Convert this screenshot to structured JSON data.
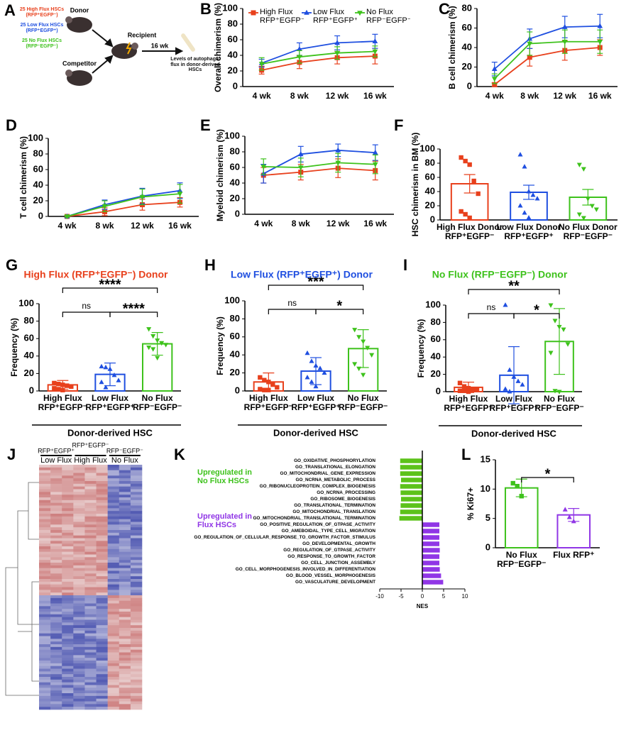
{
  "panels": {
    "A": "A",
    "J": "J"
  },
  "diagram": {
    "donor_groups": [
      "25 High Flux HSCs (RFP⁺EGFP⁻)",
      "25 Low Flux HSCs (RFP⁺EGFP⁺)",
      "25 No Flux HSCs (RFP⁻EGFP⁻)"
    ],
    "donor": "Donor",
    "recipient": "Recipient",
    "competitor": "Competitor",
    "duration": "16 wk",
    "outcome": "Levels of autophagic flux in donor-derived HSCs"
  },
  "heatmap": {
    "column_groups": [
      "RFP⁺EGFP⁺",
      "RFP⁺EGFP⁻",
      "RFP⁻EGFP⁻"
    ],
    "group_labels": [
      "Low Flux",
      "High Flux",
      "No Flux"
    ]
  },
  "chart_data": [
    {
      "type": "line",
      "panel": "B",
      "ylabel": "Overall chimerism (%)",
      "categories": [
        "4 wk",
        "8 wk",
        "12 wk",
        "16 wk"
      ],
      "ylim": [
        0,
        100
      ],
      "yticks": [
        0,
        20,
        40,
        60,
        80,
        100
      ],
      "legend": true,
      "series": [
        {
          "name": "High Flux RFP⁺EGFP⁻",
          "color": "#e8401c",
          "marker": "square",
          "values": [
            21,
            31,
            37,
            39
          ],
          "errors": [
            5,
            8,
            8,
            10
          ]
        },
        {
          "name": "Low Flux RFP⁺EGFP⁺",
          "color": "#1f4fe0",
          "marker": "triangle",
          "values": [
            30,
            48,
            56,
            58
          ],
          "errors": [
            5,
            8,
            9,
            9
          ]
        },
        {
          "name": "No Flux RFP⁻EGFP⁻",
          "color": "#3ec21c",
          "marker": "triangle-down",
          "values": [
            29,
            38,
            43,
            45
          ],
          "errors": [
            8,
            8,
            8,
            7
          ]
        }
      ]
    },
    {
      "type": "line",
      "panel": "C",
      "ylabel": "B cell chimerism (%)",
      "categories": [
        "4 wk",
        "8 wk",
        "12 wk",
        "16 wk"
      ],
      "ylim": [
        0,
        80
      ],
      "yticks": [
        0,
        20,
        40,
        60,
        80
      ],
      "series": [
        {
          "color": "#e8401c",
          "marker": "square",
          "values": [
            2,
            30,
            37,
            40
          ],
          "errors": [
            2,
            9,
            10,
            8
          ]
        },
        {
          "color": "#1f4fe0",
          "marker": "triangle",
          "values": [
            18,
            49,
            61,
            62
          ],
          "errors": [
            7,
            10,
            11,
            12
          ]
        },
        {
          "color": "#3ec21c",
          "marker": "triangle-down",
          "values": [
            8,
            44,
            46,
            46
          ],
          "errors": [
            5,
            12,
            12,
            12
          ]
        }
      ]
    },
    {
      "type": "line",
      "panel": "D",
      "ylabel": "T cell chimerism (%)",
      "categories": [
        "4 wk",
        "8 wk",
        "12 wk",
        "16 wk"
      ],
      "ylim": [
        0,
        100
      ],
      "yticks": [
        0,
        20,
        40,
        60,
        80,
        100
      ],
      "series": [
        {
          "color": "#e8401c",
          "marker": "square",
          "values": [
            0,
            6,
            15,
            18
          ],
          "errors": [
            1,
            5,
            7,
            6
          ]
        },
        {
          "color": "#1f4fe0",
          "marker": "triangle",
          "values": [
            0,
            15,
            26,
            33
          ],
          "errors": [
            1,
            6,
            10,
            10
          ]
        },
        {
          "color": "#3ec21c",
          "marker": "triangle-down",
          "values": [
            0,
            13,
            25,
            29
          ],
          "errors": [
            1,
            7,
            10,
            12
          ]
        }
      ]
    },
    {
      "type": "line",
      "panel": "E",
      "ylabel": "Myeloid chimerism (%)",
      "categories": [
        "4 wk",
        "8 wk",
        "12 wk",
        "16 wk"
      ],
      "ylim": [
        0,
        100
      ],
      "yticks": [
        0,
        20,
        40,
        60,
        80,
        100
      ],
      "series": [
        {
          "color": "#e8401c",
          "marker": "square",
          "values": [
            50,
            54,
            59,
            56
          ],
          "errors": [
            10,
            10,
            12,
            12
          ]
        },
        {
          "color": "#1f4fe0",
          "marker": "triangle",
          "values": [
            52,
            77,
            82,
            79
          ],
          "errors": [
            12,
            10,
            8,
            10
          ]
        },
        {
          "color": "#3ec21c",
          "marker": "triangle-down",
          "values": [
            61,
            60,
            66,
            64
          ],
          "errors": [
            10,
            12,
            12,
            12
          ]
        }
      ]
    },
    {
      "type": "bar",
      "panel": "F",
      "ylabel": "HSC chimerism in BM (%)",
      "categories": [
        "High Flux Donor RFP⁺EGFP⁻",
        "Low Flux Donor RFP⁺EGFP⁺",
        "No Flux Donor RFP⁻EGFP⁻"
      ],
      "colors": [
        "#e8401c",
        "#1f4fe0",
        "#3ec21c"
      ],
      "markers": [
        "square",
        "triangle",
        "triangle-down"
      ],
      "ylim": [
        0,
        100
      ],
      "yticks": [
        0,
        20,
        40,
        60,
        80,
        100
      ],
      "values": [
        51,
        39,
        32
      ],
      "errors": [
        13,
        10,
        11
      ],
      "points": [
        [
          88,
          83,
          78,
          55,
          37,
          12,
          8,
          3
        ],
        [
          92,
          75,
          40,
          35,
          30,
          20,
          10,
          3
        ],
        [
          78,
          72,
          30,
          20,
          15,
          8,
          3
        ]
      ]
    },
    {
      "type": "bar",
      "panel": "G",
      "title": "High Flux (RFP⁺EGFP⁻) Donor",
      "title_color": "#e8401c",
      "ylabel": "Frequency (%)",
      "xlabel": "Donor-derived HSC",
      "categories": [
        "High Flux RFP⁺EGFP⁻",
        "Low Flux RFP⁺EGFP⁺",
        "No Flux RFP⁻EGFP⁻"
      ],
      "colors": [
        "#e8401c",
        "#1f4fe0",
        "#3ec21c"
      ],
      "markers": [
        "square",
        "triangle",
        "triangle-down"
      ],
      "ylim": [
        0,
        100
      ],
      "yticks": [
        0,
        20,
        40,
        60,
        80,
        100
      ],
      "values": [
        7,
        19,
        54
      ],
      "errors": [
        5,
        13,
        13
      ],
      "points": [
        [
          9,
          8,
          7,
          6,
          5,
          3,
          2,
          1
        ],
        [
          28,
          27,
          25,
          18,
          12,
          10,
          4
        ],
        [
          71,
          63,
          58,
          55,
          53,
          50,
          48,
          38
        ]
      ],
      "significance": [
        "****",
        "ns",
        "****"
      ]
    },
    {
      "type": "bar",
      "panel": "H",
      "title": "Low Flux (RFP⁺EGFP⁺) Donor",
      "title_color": "#1f4fe0",
      "ylabel": "Frequency (%)",
      "xlabel": "Donor-derived HSC",
      "categories": [
        "High Flux RFP⁺EGFP⁻",
        "Low Flux RFP⁺EGFP⁺",
        "No Flux RFP⁻EGFP⁻"
      ],
      "colors": [
        "#e8401c",
        "#1f4fe0",
        "#3ec21c"
      ],
      "markers": [
        "square",
        "triangle",
        "triangle-down"
      ],
      "ylim": [
        0,
        100
      ],
      "yticks": [
        0,
        20,
        40,
        60,
        80,
        100
      ],
      "values": [
        10,
        22,
        47
      ],
      "errors": [
        10,
        15,
        21
      ],
      "points": [
        [
          15,
          12,
          10,
          7,
          4,
          2,
          1,
          1
        ],
        [
          42,
          33,
          28,
          25,
          20,
          15,
          10,
          5
        ],
        [
          68,
          60,
          55,
          48,
          40,
          30,
          25,
          18
        ]
      ],
      "significance": [
        "***",
        "ns",
        "*"
      ]
    },
    {
      "type": "bar",
      "panel": "I",
      "title": "No Flux (RFP⁻EGFP⁻) Donor",
      "title_color": "#3ec21c",
      "ylabel": "Frequency (%)",
      "xlabel": "Donor-derived HSC",
      "categories": [
        "High Flux RFP⁺EGFP⁻",
        "Low Flux RFP⁺EGFP⁺",
        "No Flux RFP⁻EGFP⁻"
      ],
      "colors": [
        "#e8401c",
        "#1f4fe0",
        "#3ec21c"
      ],
      "markers": [
        "square",
        "triangle",
        "triangle-down"
      ],
      "ylim": [
        0,
        100
      ],
      "yticks": [
        0,
        20,
        40,
        60,
        80,
        100
      ],
      "values": [
        5,
        19,
        58
      ],
      "errors": [
        6,
        33,
        38
      ],
      "points": [
        [
          10,
          6,
          4,
          3,
          2,
          1,
          1,
          0
        ],
        [
          100,
          25,
          17,
          12,
          8,
          3,
          0
        ],
        [
          100,
          82,
          75,
          72,
          55,
          45,
          1,
          0
        ]
      ],
      "significance": [
        "**",
        "ns",
        "*"
      ]
    },
    {
      "type": "hbar",
      "panel": "K",
      "xlabel": "NES",
      "xlim": [
        -10,
        10
      ],
      "xticks": [
        -10,
        -5,
        0,
        5,
        10
      ],
      "negative_color": "#5cc21a",
      "positive_color": "#9036e6",
      "annotations": [
        {
          "text": "Upregulated in No Flux HSCs",
          "color": "#3ec21c"
        },
        {
          "text": "Upregulated in Flux HSCs",
          "color": "#9036e6"
        }
      ],
      "categories": [
        "GO_OXIDATIVE_PHOSPHORYLATION",
        "GO_TRANSLATIONAL_ELONGATION",
        "GO_MITOCHONDRIAL_GENE_EXPRESSION",
        "GO_NCRNA_METABOLIC_PROCESS",
        "GO_RIBONUCLEOPROTEIN_COMPLEX_BIOGENESIS",
        "GO_NCRNA_PROCESSING",
        "GO_RIBOSOME_BIOGENESIS",
        "GO_TRANSLATIONAL_TERMINATION",
        "GO_MITOCHONDRIAL_TRANSLATION",
        "GO_MITOCHONDRIAL_TRANSLATIONAL_TERMINATION",
        "GO_POSITIVE_REGULATION_OF_GTPASE_ACTIVITY",
        "GO_AMEBOIDAL_TYPE_CELL_MIGRATION",
        "GO_REGULATION_OF_CELLULAR_RESPONSE_TO_GROWTH_FACTOR_STIMULUS",
        "GO_DEVELOPMENTAL_GROWTH",
        "GO_REGULATION_OF_GTPASE_ACTIVITY",
        "GO_RESPONSE_TO_GROWTH_FACTOR",
        "GO_CELL_JUNCTION_ASSEMBLY",
        "GO_CELL_MORPHOGENESIS_INVOLVED_IN_DIFFERENTIATION",
        "GO_BLOOD_VESSEL_MORPHOGENESIS",
        "GO_VASCULATURE_DEVELOPMENT"
      ],
      "values": [
        -5.2,
        -5.2,
        -5.2,
        -5.0,
        -5.2,
        -5.1,
        -5.0,
        -5.1,
        -5.2,
        -5.4,
        4.0,
        4.0,
        4.0,
        4.0,
        4.1,
        4.0,
        4.0,
        4.1,
        4.4,
        4.9
      ]
    },
    {
      "type": "bar",
      "panel": "L",
      "ylabel": "% Ki67+",
      "categories": [
        "No Flux RFP⁻EGFP⁻",
        "Flux RFP⁺"
      ],
      "colors": [
        "#3ec21c",
        "#9036e6"
      ],
      "markers": [
        "square",
        "triangle"
      ],
      "ylim": [
        0,
        15
      ],
      "yticks": [
        0,
        5,
        10,
        15
      ],
      "values": [
        10.2,
        5.6
      ],
      "errors": [
        1.5,
        1.1
      ],
      "points": [
        [
          11,
          10.5,
          8.8
        ],
        [
          6.5,
          5.2,
          4.5
        ]
      ],
      "significance": [
        "*"
      ]
    }
  ]
}
